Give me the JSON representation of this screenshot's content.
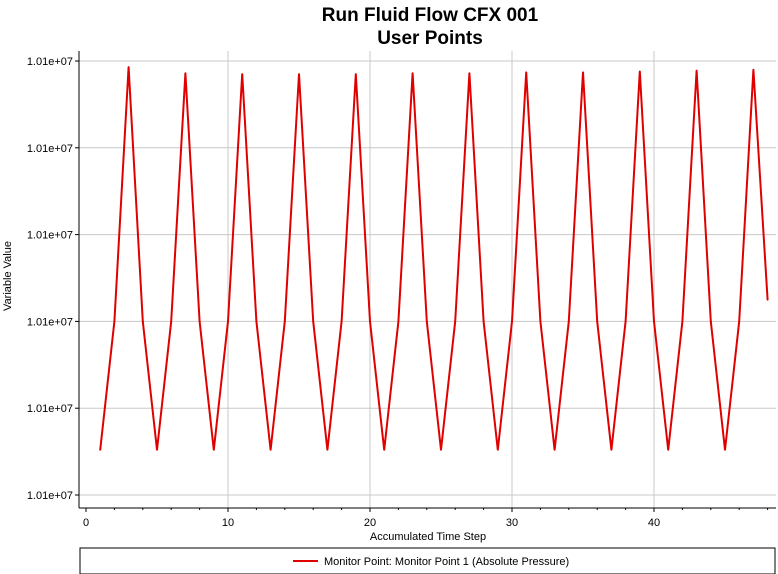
{
  "chart_data": {
    "type": "line",
    "title": "Run Fluid Flow CFX 001",
    "subtitle": "User Points",
    "xlabel": "Accumulated Time Step",
    "ylabel": "Variable Value",
    "x_ticks": [
      0,
      10,
      20,
      30,
      40
    ],
    "y_tick_labels": [
      "1.01e+07",
      "1.01e+07",
      "1.01e+07",
      "1.01e+07",
      "1.01e+07",
      "1.01e+07"
    ],
    "xlim": [
      0,
      48.5
    ],
    "ylim": [
      0,
      5
    ],
    "y_note": "y values expressed on the chart's visible gridline scale (6 gridlines, all labeled 1.01e+07)",
    "grid": true,
    "legend_position": "bottom",
    "series": [
      {
        "name": "Monitor Point: Monitor Point 1 (Absolute Pressure)",
        "color": "#e00000",
        "x": [
          1,
          2,
          3,
          4,
          5,
          6,
          7,
          8,
          9,
          10,
          11,
          12,
          13,
          14,
          15,
          16,
          17,
          18,
          19,
          20,
          21,
          22,
          23,
          24,
          25,
          26,
          27,
          28,
          29,
          30,
          31,
          32,
          33,
          34,
          35,
          36,
          37,
          38,
          39,
          40,
          41,
          42,
          43,
          44,
          45,
          46,
          47,
          48
        ],
        "y": [
          0.52,
          2.0,
          4.93,
          2.0,
          0.52,
          2.0,
          4.86,
          2.0,
          0.52,
          2.0,
          4.85,
          2.0,
          0.52,
          2.0,
          4.85,
          2.0,
          0.52,
          2.0,
          4.85,
          2.0,
          0.52,
          2.0,
          4.86,
          2.0,
          0.52,
          2.0,
          4.86,
          2.0,
          0.52,
          2.0,
          4.87,
          2.0,
          0.52,
          2.0,
          4.87,
          2.0,
          0.52,
          2.0,
          4.88,
          2.0,
          0.52,
          2.0,
          4.89,
          2.0,
          0.52,
          2.0,
          4.9,
          2.25
        ]
      }
    ]
  }
}
